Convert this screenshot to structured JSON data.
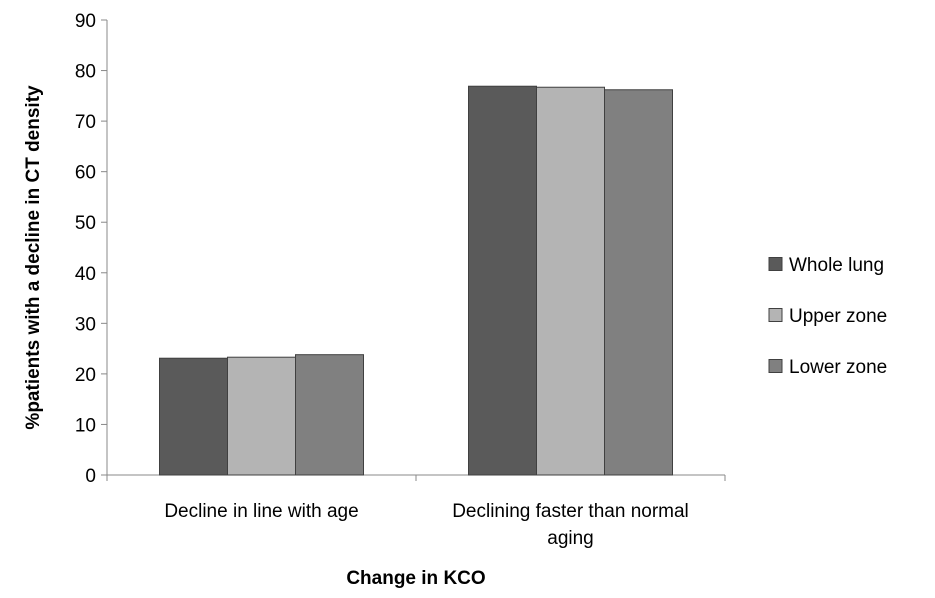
{
  "chart_data": {
    "type": "bar",
    "categories": [
      [
        "Decline in line with age"
      ],
      [
        "Declining faster than normal",
        "aging"
      ]
    ],
    "series": [
      {
        "name": "Whole lung",
        "values": [
          23.1,
          76.9
        ],
        "color": "#5a5a5a"
      },
      {
        "name": "Upper zone",
        "values": [
          23.3,
          76.7
        ],
        "color": "#b4b4b4"
      },
      {
        "name": "Lower zone",
        "values": [
          23.8,
          76.2
        ],
        "color": "#808080"
      }
    ],
    "xlabel": "Change in KCO",
    "ylabel": "%patients with a decline in CT density",
    "ylim": [
      0,
      90
    ],
    "yticks": [
      0,
      10,
      20,
      30,
      40,
      50,
      60,
      70,
      80,
      90
    ],
    "grid": false,
    "legend": "right",
    "bar_outline_color": "#404040"
  }
}
